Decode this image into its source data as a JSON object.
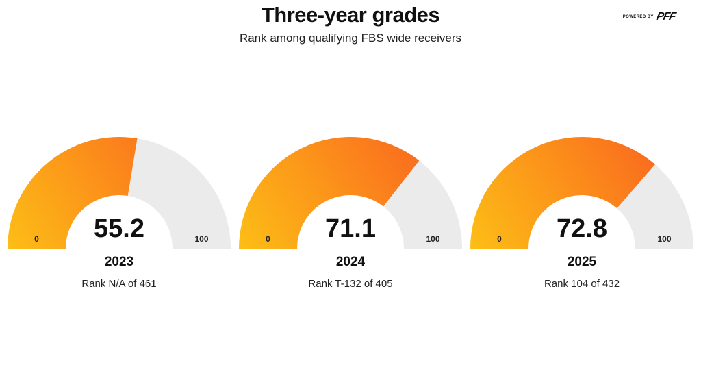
{
  "header": {
    "title": "Three-year grades",
    "subtitle": "Rank among qualifying FBS wide receivers",
    "brand_small": "POWERED BY",
    "brand_logo": "PFF"
  },
  "colors": {
    "gauge_start": "#FDBE16",
    "gauge_end": "#FA6A1E",
    "gauge_track": "#EBEBEB"
  },
  "chart_data": {
    "type": "gauge",
    "min": 0,
    "max": 100,
    "min_label": "0",
    "max_label": "100",
    "gauges": [
      {
        "year": "2023",
        "value": 55.2,
        "value_label": "55.2",
        "rank": "Rank N/A of 461"
      },
      {
        "year": "2024",
        "value": 71.1,
        "value_label": "71.1",
        "rank": "Rank T-132 of 405"
      },
      {
        "year": "2025",
        "value": 72.8,
        "value_label": "72.8",
        "rank": "Rank 104 of 432"
      }
    ]
  }
}
